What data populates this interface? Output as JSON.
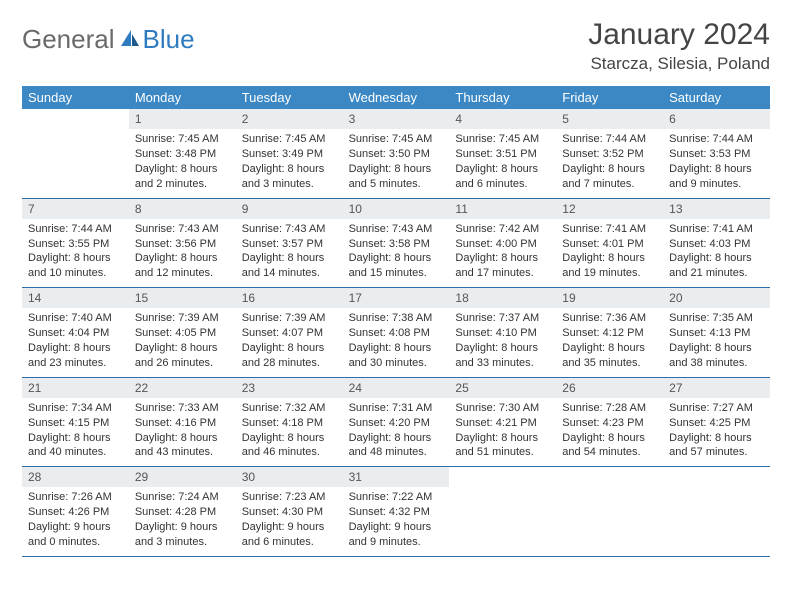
{
  "colors": {
    "header_bg": "#3b88c4",
    "header_text": "#ffffff",
    "daynum_bg": "#e9edf0",
    "daynum_text": "#555555",
    "border": "#2f6fa8",
    "body_text": "#333333",
    "logo_gray": "#6a6a6a",
    "logo_blue": "#2f7bbf"
  },
  "logo": {
    "part1": "General",
    "part2": "Blue"
  },
  "title": "January 2024",
  "location": "Starcza, Silesia, Poland",
  "dow": [
    "Sunday",
    "Monday",
    "Tuesday",
    "Wednesday",
    "Thursday",
    "Friday",
    "Saturday"
  ],
  "labels": {
    "sunrise": "Sunrise:",
    "sunset": "Sunset:",
    "daylight": "Daylight:"
  },
  "weeks": [
    [
      null,
      {
        "n": "1",
        "sr": "7:45 AM",
        "ss": "3:48 PM",
        "d1": "8 hours",
        "d2": "and 2 minutes."
      },
      {
        "n": "2",
        "sr": "7:45 AM",
        "ss": "3:49 PM",
        "d1": "8 hours",
        "d2": "and 3 minutes."
      },
      {
        "n": "3",
        "sr": "7:45 AM",
        "ss": "3:50 PM",
        "d1": "8 hours",
        "d2": "and 5 minutes."
      },
      {
        "n": "4",
        "sr": "7:45 AM",
        "ss": "3:51 PM",
        "d1": "8 hours",
        "d2": "and 6 minutes."
      },
      {
        "n": "5",
        "sr": "7:44 AM",
        "ss": "3:52 PM",
        "d1": "8 hours",
        "d2": "and 7 minutes."
      },
      {
        "n": "6",
        "sr": "7:44 AM",
        "ss": "3:53 PM",
        "d1": "8 hours",
        "d2": "and 9 minutes."
      }
    ],
    [
      {
        "n": "7",
        "sr": "7:44 AM",
        "ss": "3:55 PM",
        "d1": "8 hours",
        "d2": "and 10 minutes."
      },
      {
        "n": "8",
        "sr": "7:43 AM",
        "ss": "3:56 PM",
        "d1": "8 hours",
        "d2": "and 12 minutes."
      },
      {
        "n": "9",
        "sr": "7:43 AM",
        "ss": "3:57 PM",
        "d1": "8 hours",
        "d2": "and 14 minutes."
      },
      {
        "n": "10",
        "sr": "7:43 AM",
        "ss": "3:58 PM",
        "d1": "8 hours",
        "d2": "and 15 minutes."
      },
      {
        "n": "11",
        "sr": "7:42 AM",
        "ss": "4:00 PM",
        "d1": "8 hours",
        "d2": "and 17 minutes."
      },
      {
        "n": "12",
        "sr": "7:41 AM",
        "ss": "4:01 PM",
        "d1": "8 hours",
        "d2": "and 19 minutes."
      },
      {
        "n": "13",
        "sr": "7:41 AM",
        "ss": "4:03 PM",
        "d1": "8 hours",
        "d2": "and 21 minutes."
      }
    ],
    [
      {
        "n": "14",
        "sr": "7:40 AM",
        "ss": "4:04 PM",
        "d1": "8 hours",
        "d2": "and 23 minutes."
      },
      {
        "n": "15",
        "sr": "7:39 AM",
        "ss": "4:05 PM",
        "d1": "8 hours",
        "d2": "and 26 minutes."
      },
      {
        "n": "16",
        "sr": "7:39 AM",
        "ss": "4:07 PM",
        "d1": "8 hours",
        "d2": "and 28 minutes."
      },
      {
        "n": "17",
        "sr": "7:38 AM",
        "ss": "4:08 PM",
        "d1": "8 hours",
        "d2": "and 30 minutes."
      },
      {
        "n": "18",
        "sr": "7:37 AM",
        "ss": "4:10 PM",
        "d1": "8 hours",
        "d2": "and 33 minutes."
      },
      {
        "n": "19",
        "sr": "7:36 AM",
        "ss": "4:12 PM",
        "d1": "8 hours",
        "d2": "and 35 minutes."
      },
      {
        "n": "20",
        "sr": "7:35 AM",
        "ss": "4:13 PM",
        "d1": "8 hours",
        "d2": "and 38 minutes."
      }
    ],
    [
      {
        "n": "21",
        "sr": "7:34 AM",
        "ss": "4:15 PM",
        "d1": "8 hours",
        "d2": "and 40 minutes."
      },
      {
        "n": "22",
        "sr": "7:33 AM",
        "ss": "4:16 PM",
        "d1": "8 hours",
        "d2": "and 43 minutes."
      },
      {
        "n": "23",
        "sr": "7:32 AM",
        "ss": "4:18 PM",
        "d1": "8 hours",
        "d2": "and 46 minutes."
      },
      {
        "n": "24",
        "sr": "7:31 AM",
        "ss": "4:20 PM",
        "d1": "8 hours",
        "d2": "and 48 minutes."
      },
      {
        "n": "25",
        "sr": "7:30 AM",
        "ss": "4:21 PM",
        "d1": "8 hours",
        "d2": "and 51 minutes."
      },
      {
        "n": "26",
        "sr": "7:28 AM",
        "ss": "4:23 PM",
        "d1": "8 hours",
        "d2": "and 54 minutes."
      },
      {
        "n": "27",
        "sr": "7:27 AM",
        "ss": "4:25 PM",
        "d1": "8 hours",
        "d2": "and 57 minutes."
      }
    ],
    [
      {
        "n": "28",
        "sr": "7:26 AM",
        "ss": "4:26 PM",
        "d1": "9 hours",
        "d2": "and 0 minutes."
      },
      {
        "n": "29",
        "sr": "7:24 AM",
        "ss": "4:28 PM",
        "d1": "9 hours",
        "d2": "and 3 minutes."
      },
      {
        "n": "30",
        "sr": "7:23 AM",
        "ss": "4:30 PM",
        "d1": "9 hours",
        "d2": "and 6 minutes."
      },
      {
        "n": "31",
        "sr": "7:22 AM",
        "ss": "4:32 PM",
        "d1": "9 hours",
        "d2": "and 9 minutes."
      },
      null,
      null,
      null
    ]
  ]
}
